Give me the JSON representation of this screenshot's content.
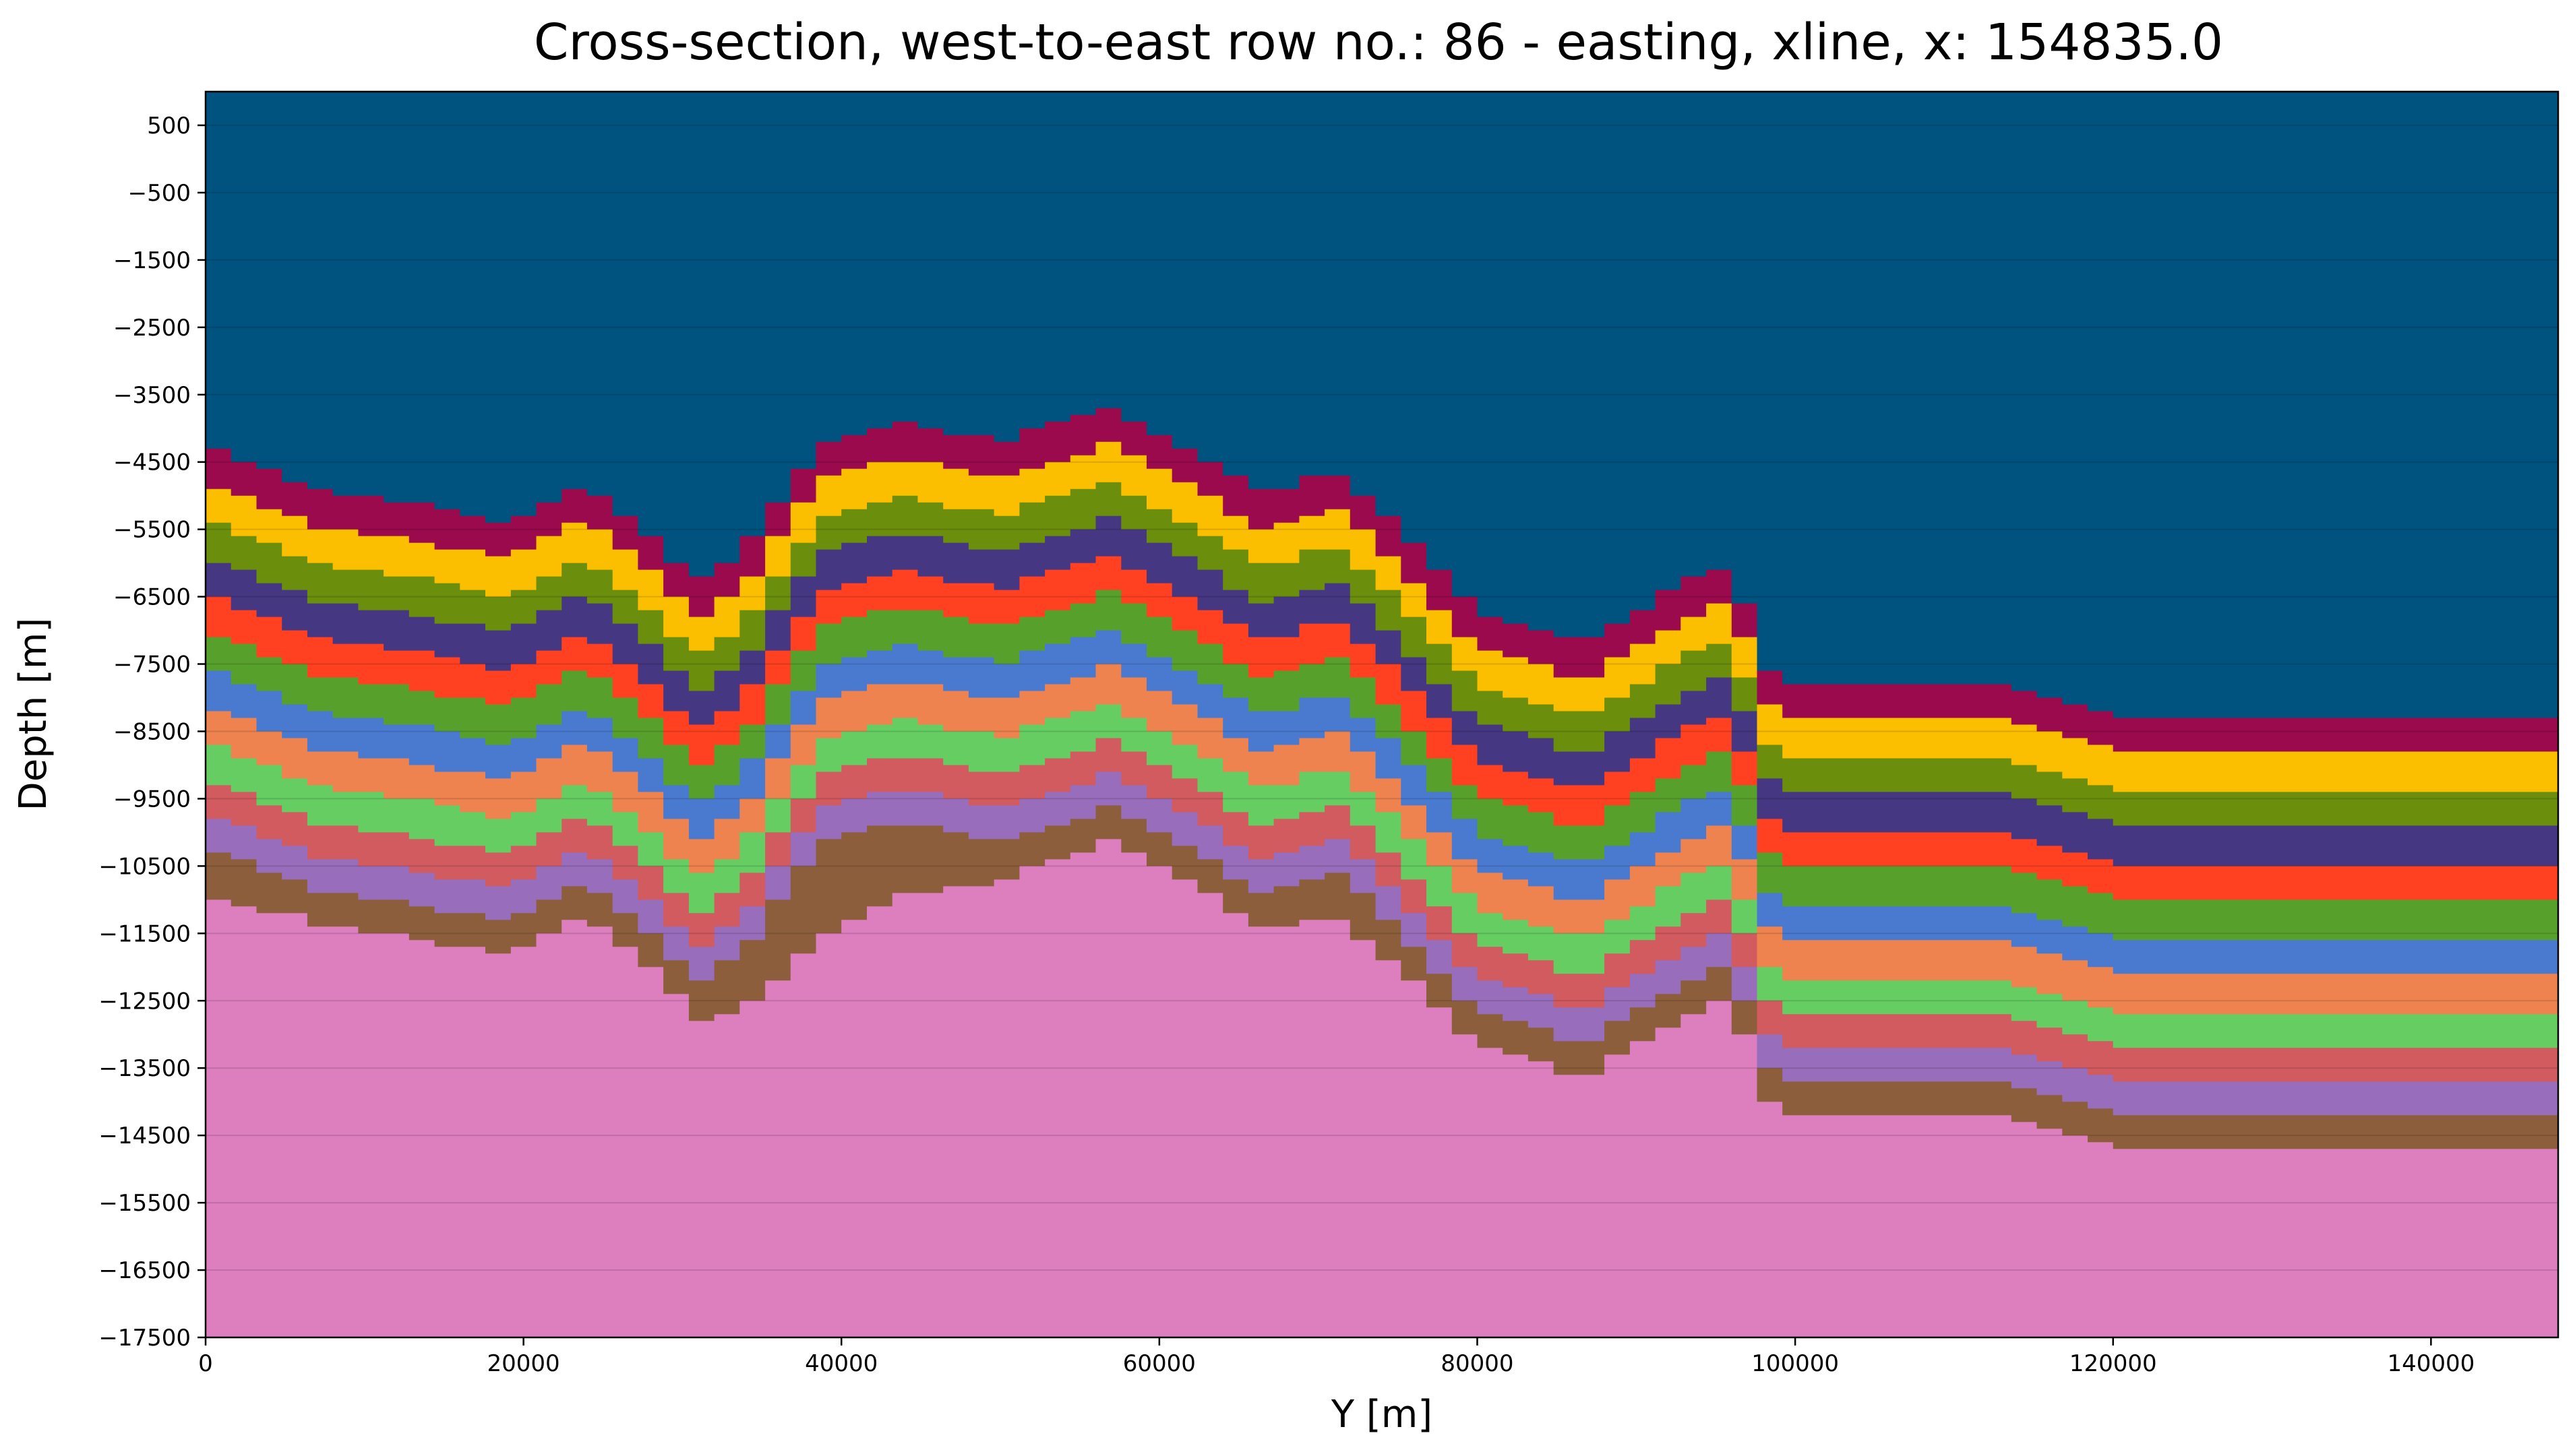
{
  "chart_data": {
    "type": "area",
    "title": "Cross-section, west-to-east row no.: 86 - easting, xline, x: 154835.0",
    "xlabel": "Y [m]",
    "ylabel": "Depth [m]",
    "xlim": [
      0,
      148000
    ],
    "ylim": [
      -17500,
      1000
    ],
    "grid": true,
    "legend": "none",
    "x_ticks": [
      "0",
      "20000",
      "40000",
      "60000",
      "80000",
      "100000",
      "120000",
      "140000"
    ],
    "x_tick_values": [
      0,
      20000,
      40000,
      60000,
      80000,
      100000,
      120000,
      140000
    ],
    "y_ticks": [
      "500",
      "−500",
      "−1500",
      "−2500",
      "−3500",
      "−4500",
      "−5500",
      "−6500",
      "−7500",
      "−8500",
      "−9500",
      "−10500",
      "−11500",
      "−12500",
      "−13500",
      "−14500",
      "−15500",
      "−16500",
      "−17500"
    ],
    "y_tick_values": [
      500,
      -500,
      -1500,
      -2500,
      -3500,
      -4500,
      -5500,
      -6500,
      -7500,
      -8500,
      -9500,
      -10500,
      -11500,
      -12500,
      -13500,
      -14500,
      -15500,
      -16500,
      -17500
    ],
    "background_color": "#00527f",
    "x": [
      0,
      6000,
      12000,
      18000,
      23000,
      27000,
      30000,
      33000,
      38000,
      43000,
      49000,
      56000,
      61000,
      66000,
      70000,
      74000,
      79000,
      86000,
      92000,
      95000,
      98000,
      104000,
      112000,
      120000,
      128000,
      136000,
      148000
    ],
    "top_surface": [
      -4350,
      -4900,
      -5100,
      -5400,
      -4800,
      -5500,
      -6300,
      -5800,
      -4200,
      -3900,
      -4200,
      -3700,
      -4300,
      -5000,
      -4600,
      -5400,
      -6700,
      -7200,
      -6300,
      -6000,
      -7800,
      -7800,
      -7800,
      -8300,
      -8300,
      -8300,
      -8300
    ],
    "layer_colors": [
      "#9a0a4c",
      "#fcbf00",
      "#6b8e0c",
      "#463782",
      "#ff4121",
      "#58a02c",
      "#4a7ad0",
      "#ee8350",
      "#66cd63",
      "#d15b5f",
      "#986dbc",
      "#8c5e3b",
      "#dd7ebe"
    ],
    "layer_offsets": [
      0,
      550,
      1100,
      1650,
      2200,
      2750,
      3300,
      3850,
      4400,
      4950,
      5450,
      5950
    ],
    "bottom_surface": [
      -11000,
      -11300,
      -11500,
      -11800,
      -11200,
      -11800,
      -12800,
      -12600,
      -11600,
      -10900,
      -10800,
      -10000,
      -10700,
      -11500,
      -11200,
      -12000,
      -12600,
      -13000,
      -12400,
      -12200,
      -13300,
      -13600,
      -14000,
      -14400,
      -14700,
      -14700,
      -14700
    ],
    "step_width": 1600
  }
}
